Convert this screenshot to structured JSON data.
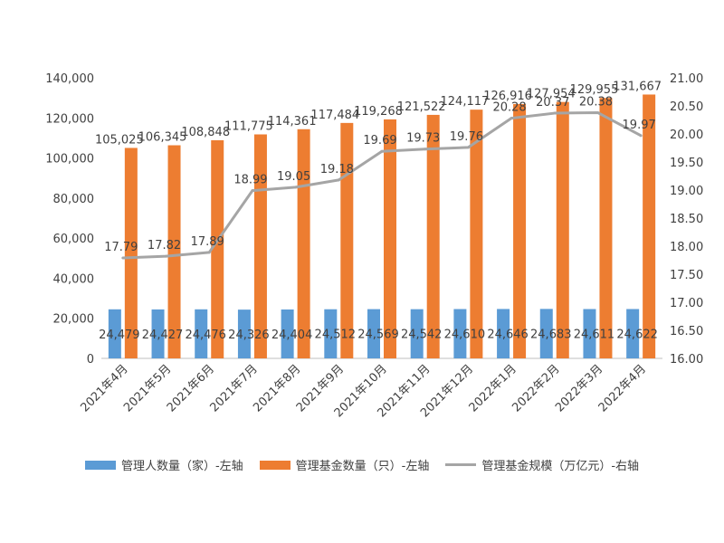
{
  "colors": {
    "people": "#5b9bd5",
    "funds": "#ed7d31",
    "scale": "#a5a5a5",
    "text": "#404040",
    "axis": "#bfbfbf"
  },
  "legend": [
    {
      "label": "管理人数量（家）-左轴",
      "kind": "bar",
      "color": "#5b9bd5"
    },
    {
      "label": "管理基金数量（只）-左轴",
      "kind": "bar",
      "color": "#ed7d31"
    },
    {
      "label": "管理基金规模（万亿元）-右轴",
      "kind": "line",
      "color": "#a5a5a5"
    }
  ],
  "chart_data": {
    "type": "bar+line",
    "categories": [
      "2021年4月",
      "2021年5月",
      "2021年6月",
      "2021年7月",
      "2021年8月",
      "2021年9月",
      "2021年10月",
      "2021年11月",
      "2021年12月",
      "2022年1月",
      "2022年2月",
      "2022年3月",
      "2022年4月"
    ],
    "series": [
      {
        "name": "管理人数量（家）-左轴",
        "type": "bar",
        "axis": "left",
        "values": [
          24479,
          24427,
          24476,
          24326,
          24404,
          24512,
          24569,
          24542,
          24610,
          24646,
          24683,
          24611,
          24622
        ],
        "labels": [
          "24,479",
          "24,427",
          "24,476",
          "24,326",
          "24,404",
          "24,512",
          "24,569",
          "24,542",
          "24,610",
          "24,646",
          "24,683",
          "24,611",
          "24,622"
        ]
      },
      {
        "name": "管理基金数量（只）-左轴",
        "type": "bar",
        "axis": "left",
        "values": [
          105025,
          106345,
          108848,
          111775,
          114361,
          117484,
          119268,
          121522,
          124117,
          126916,
          127954,
          129955,
          131667
        ],
        "labels": [
          "105,025",
          "106,345",
          "108,848",
          "111,775",
          "114,361",
          "117,484",
          "119,268",
          "121,522",
          "124,117",
          "126,916",
          "127,954",
          "129,955",
          "131,667"
        ]
      },
      {
        "name": "管理基金规模（万亿元）-右轴",
        "type": "line",
        "axis": "right",
        "values": [
          17.79,
          17.82,
          17.89,
          18.99,
          19.05,
          19.18,
          19.69,
          19.73,
          19.76,
          20.28,
          20.37,
          20.38,
          19.97
        ],
        "labels": [
          "17.79",
          "17.82",
          "17.89",
          "18.99",
          "19.05",
          "19.18",
          "19.69",
          "19.73",
          "19.76",
          "20.28",
          "20.37",
          "20.38",
          "19.97"
        ]
      }
    ],
    "left_axis": {
      "min": 0,
      "max": 140000,
      "ticks": [
        0,
        20000,
        40000,
        60000,
        80000,
        100000,
        120000,
        140000
      ],
      "tick_labels": [
        "0",
        "20,000",
        "40,000",
        "60,000",
        "80,000",
        "100,000",
        "120,000",
        "140,000"
      ]
    },
    "right_axis": {
      "min": 16,
      "max": 21,
      "ticks": [
        16,
        16.5,
        17,
        17.5,
        18,
        18.5,
        19,
        19.5,
        20,
        20.5,
        21
      ],
      "tick_labels": [
        "16.00",
        "16.50",
        "17.00",
        "17.50",
        "18.00",
        "18.50",
        "19.00",
        "19.50",
        "20.00",
        "20.50",
        "21.00"
      ]
    },
    "grid": false,
    "legend_position": "bottom"
  }
}
